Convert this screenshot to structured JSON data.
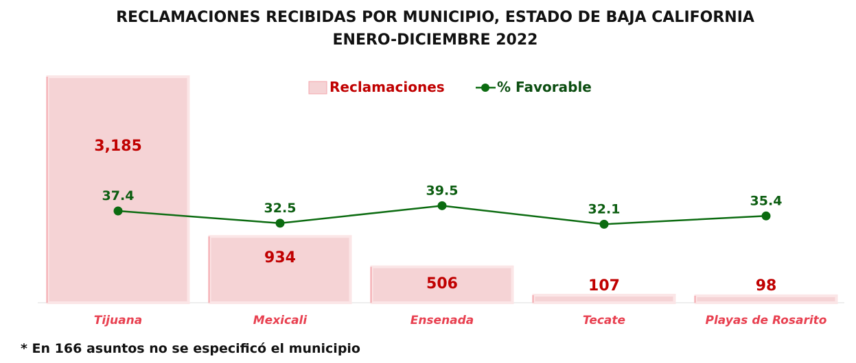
{
  "chart_data": {
    "type": "bar",
    "title": [
      "RECLAMACIONES RECIBIDAS POR MUNICIPIO, ESTADO DE BAJA CALIFORNIA",
      "ENERO-DICIEMBRE 2022"
    ],
    "categories": [
      "Tijuana",
      "Mexicali",
      "Ensenada",
      "Tecate",
      "Playas de Rosarito"
    ],
    "series": [
      {
        "name": "Reclamaciones",
        "type": "bar",
        "values": [
          3185,
          934,
          506,
          107,
          98
        ],
        "labels": [
          "3,185",
          "934",
          "506",
          "107",
          "98"
        ],
        "color": "#f5d3d5",
        "label_color": "#c00000"
      },
      {
        "name": "% Favorable",
        "type": "line",
        "values": [
          37.4,
          32.5,
          39.5,
          32.1,
          35.4
        ],
        "labels": [
          "37.4",
          "32.5",
          "39.5",
          "32.1",
          "35.4"
        ],
        "color": "#0b6b10"
      }
    ],
    "legend_position": "top",
    "grid": false,
    "category_label_color": "#e84050",
    "note": "* En 166 asuntos no se especificó el municipio"
  }
}
